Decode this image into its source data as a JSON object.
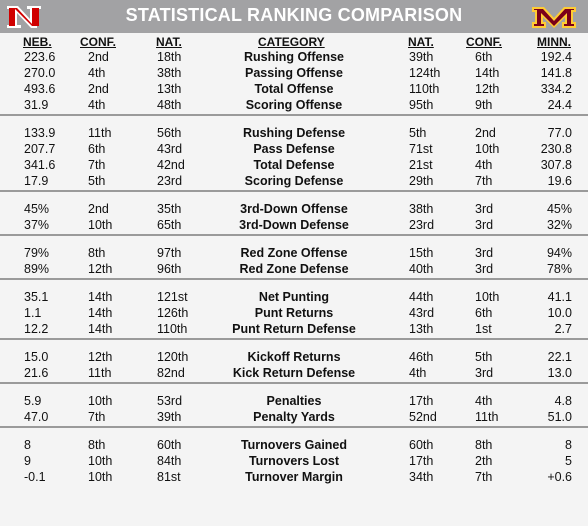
{
  "header": {
    "title": "STATISTICAL RANKING COMPARISON",
    "left_logo": "nebraska-n-logo",
    "right_logo": "minnesota-m-logo",
    "colors": {
      "header_bg": "#a2a2a4",
      "nebraska_red": "#d00000",
      "minnesota_maroon": "#7a0019",
      "minnesota_gold": "#ffcc33"
    }
  },
  "columns": {
    "neb": "NEB.",
    "neb_conf": "CONF.",
    "neb_nat": "NAT.",
    "category": "CATEGORY",
    "minn_nat": "NAT.",
    "minn_conf": "CONF.",
    "minn": "MINN."
  },
  "groups": [
    {
      "rows": [
        {
          "neb": "223.6",
          "neb_conf": "2nd",
          "neb_nat": "18th",
          "category": "Rushing Offense",
          "minn_nat": "39th",
          "minn_conf": "6th",
          "minn": "192.4"
        },
        {
          "neb": "270.0",
          "neb_conf": "4th",
          "neb_nat": "38th",
          "category": "Passing Offense",
          "minn_nat": "124th",
          "minn_conf": "14th",
          "minn": "141.8"
        },
        {
          "neb": "493.6",
          "neb_conf": "2nd",
          "neb_nat": "13th",
          "category": "Total Offense",
          "minn_nat": "110th",
          "minn_conf": "12th",
          "minn": "334.2"
        },
        {
          "neb": "31.9",
          "neb_conf": "4th",
          "neb_nat": "48th",
          "category": "Scoring Offense",
          "minn_nat": "95th",
          "minn_conf": "9th",
          "minn": "24.4"
        }
      ]
    },
    {
      "rows": [
        {
          "neb": "133.9",
          "neb_conf": "11th",
          "neb_nat": "56th",
          "category": "Rushing Defense",
          "minn_nat": "5th",
          "minn_conf": "2nd",
          "minn": "77.0"
        },
        {
          "neb": "207.7",
          "neb_conf": "6th",
          "neb_nat": "43rd",
          "category": "Pass Defense",
          "minn_nat": "71st",
          "minn_conf": "10th",
          "minn": "230.8"
        },
        {
          "neb": "341.6",
          "neb_conf": "7th",
          "neb_nat": "42nd",
          "category": "Total Defense",
          "minn_nat": "21st",
          "minn_conf": "4th",
          "minn": "307.8"
        },
        {
          "neb": "17.9",
          "neb_conf": "5th",
          "neb_nat": "23rd",
          "category": "Scoring Defense",
          "minn_nat": "29th",
          "minn_conf": "7th",
          "minn": "19.6"
        }
      ]
    },
    {
      "rows": [
        {
          "neb": "45%",
          "neb_conf": "2nd",
          "neb_nat": "35th",
          "category": "3rd-Down Offense",
          "minn_nat": "38th",
          "minn_conf": "3rd",
          "minn": "45%"
        },
        {
          "neb": "37%",
          "neb_conf": "10th",
          "neb_nat": "65th",
          "category": "3rd-Down Defense",
          "minn_nat": "23rd",
          "minn_conf": "3rd",
          "minn": "32%"
        }
      ]
    },
    {
      "rows": [
        {
          "neb": "79%",
          "neb_conf": "8th",
          "neb_nat": "97th",
          "category": "Red Zone Offense",
          "minn_nat": "15th",
          "minn_conf": "3rd",
          "minn": "94%"
        },
        {
          "neb": "89%",
          "neb_conf": "12th",
          "neb_nat": "96th",
          "category": "Red Zone Defense",
          "minn_nat": "40th",
          "minn_conf": "3rd",
          "minn": "78%"
        }
      ]
    },
    {
      "rows": [
        {
          "neb": "35.1",
          "neb_conf": "14th",
          "neb_nat": "121st",
          "category": "Net Punting",
          "minn_nat": "44th",
          "minn_conf": "10th",
          "minn": "41.1"
        },
        {
          "neb": "1.1",
          "neb_conf": "14th",
          "neb_nat": "126th",
          "category": "Punt Returns",
          "minn_nat": "43rd",
          "minn_conf": "6th",
          "minn": "10.0"
        },
        {
          "neb": "12.2",
          "neb_conf": "14th",
          "neb_nat": "110th",
          "category": "Punt Return Defense",
          "minn_nat": "13th",
          "minn_conf": "1st",
          "minn": "2.7"
        }
      ]
    },
    {
      "rows": [
        {
          "neb": "15.0",
          "neb_conf": "12th",
          "neb_nat": "120th",
          "category": "Kickoff Returns",
          "minn_nat": "46th",
          "minn_conf": "5th",
          "minn": "22.1"
        },
        {
          "neb": "21.6",
          "neb_conf": "11th",
          "neb_nat": "82nd",
          "category": "Kick Return Defense",
          "minn_nat": "4th",
          "minn_conf": "3rd",
          "minn": "13.0"
        }
      ]
    },
    {
      "rows": [
        {
          "neb": "5.9",
          "neb_conf": "10th",
          "neb_nat": "53rd",
          "category": "Penalties",
          "minn_nat": "17th",
          "minn_conf": "4th",
          "minn": "4.8"
        },
        {
          "neb": "47.0",
          "neb_conf": "7th",
          "neb_nat": "39th",
          "category": "Penalty Yards",
          "minn_nat": "52nd",
          "minn_conf": "11th",
          "minn": "51.0"
        }
      ]
    },
    {
      "rows": [
        {
          "neb": "8",
          "neb_conf": "8th",
          "neb_nat": "60th",
          "category": "Turnovers Gained",
          "minn_nat": "60th",
          "minn_conf": "8th",
          "minn": "8"
        },
        {
          "neb": "9",
          "neb_conf": "10th",
          "neb_nat": "84th",
          "category": "Turnovers Lost",
          "minn_nat": "17th",
          "minn_conf": "2th",
          "minn": "5"
        },
        {
          "neb": "-0.1",
          "neb_conf": "10th",
          "neb_nat": "81st",
          "category": "Turnover Margin",
          "minn_nat": "34th",
          "minn_conf": "7th",
          "minn": "+0.6"
        }
      ]
    }
  ]
}
